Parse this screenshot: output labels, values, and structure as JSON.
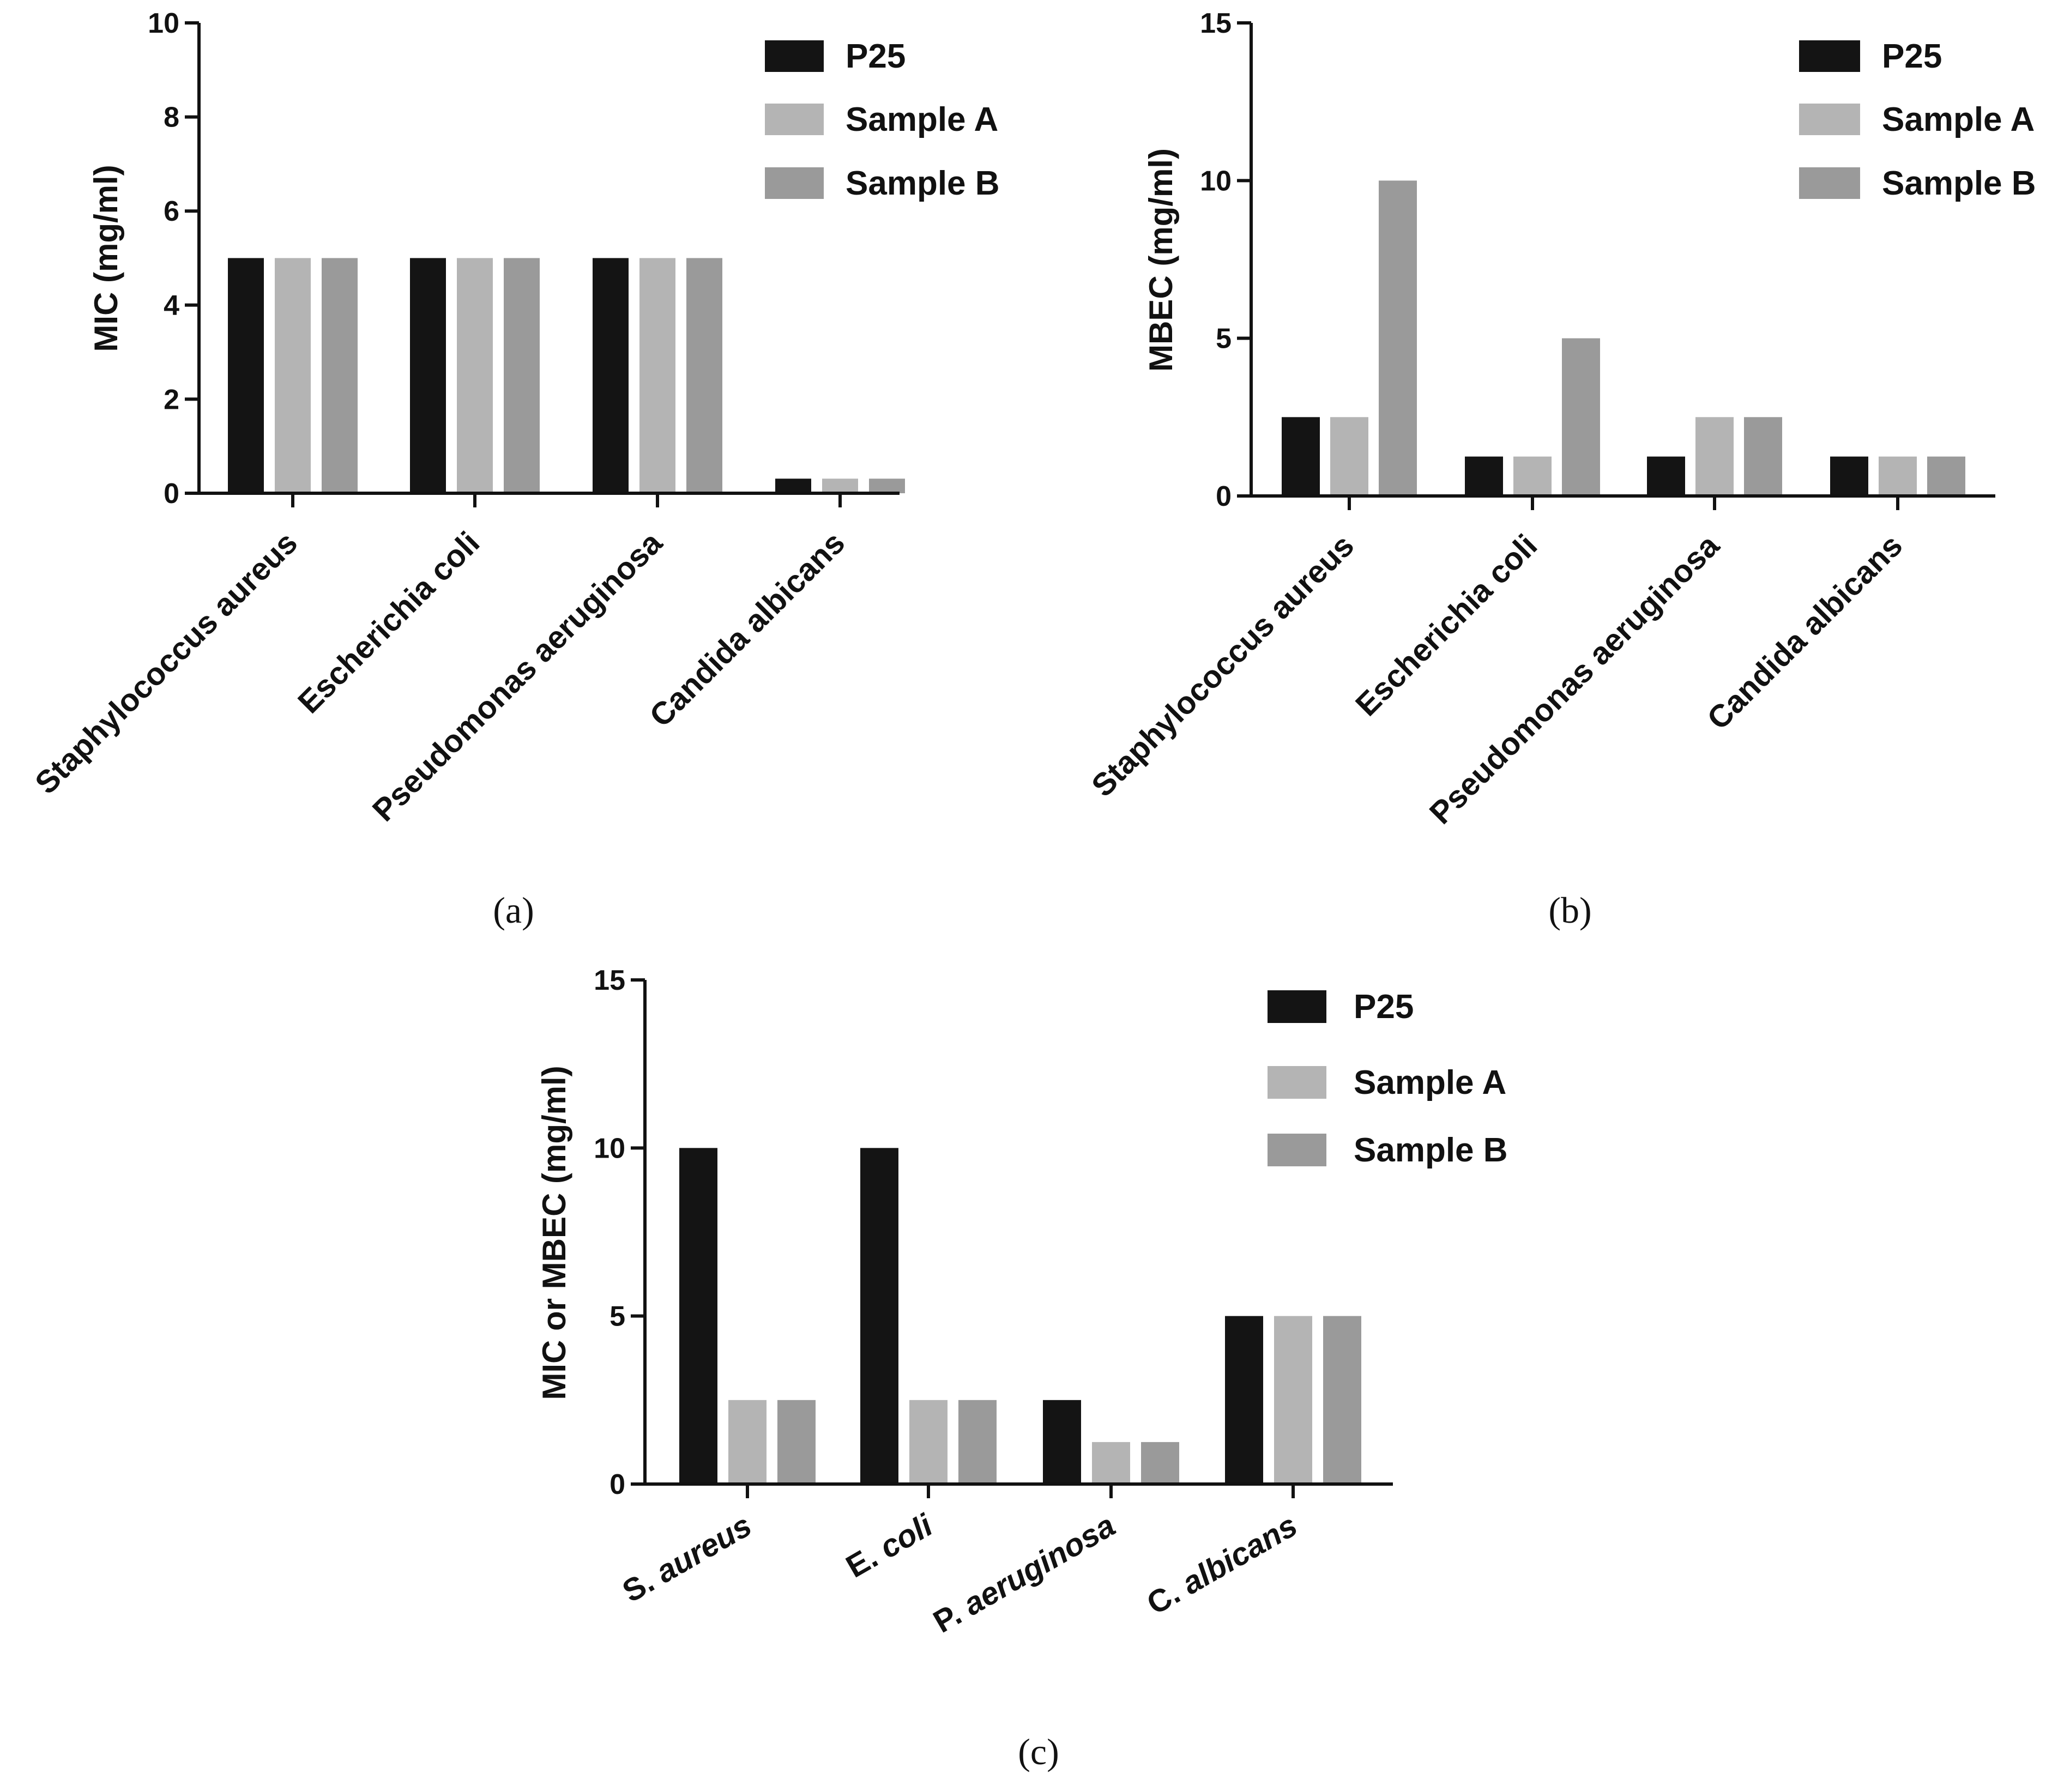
{
  "chart_data": [
    {
      "type": "bar",
      "caption": "(a)",
      "categories": [
        "Staphylococcus aureus",
        "Escherichia coli",
        "Pseudomonas aeruginosa",
        "Candida albicans"
      ],
      "category_style": "rotated",
      "series": [
        {
          "name": "P25",
          "values": [
            5.0,
            5.0,
            5.0,
            0.31
          ]
        },
        {
          "name": "Sample A",
          "values": [
            5.0,
            5.0,
            5.0,
            0.31
          ]
        },
        {
          "name": "Sample B",
          "values": [
            5.0,
            5.0,
            5.0,
            0.31
          ]
        }
      ],
      "ylabel": "MIC (mg/ml)",
      "xlabel": "",
      "ylim": [
        0,
        10
      ],
      "yticks": [
        0,
        2,
        4,
        6,
        8,
        10
      ],
      "grid": false,
      "legend": "top-right"
    },
    {
      "type": "bar",
      "caption": "(b)",
      "categories": [
        "Staphylococcus aureus",
        "Escherichia coli",
        "Pseudomonas aeruginosa",
        "Candida albicans"
      ],
      "category_style": "rotated",
      "series": [
        {
          "name": "P25",
          "values": [
            2.5,
            1.25,
            1.25,
            1.25
          ]
        },
        {
          "name": "Sample A",
          "values": [
            2.5,
            1.25,
            2.5,
            1.25
          ]
        },
        {
          "name": "Sample B",
          "values": [
            10.0,
            5.0,
            2.5,
            1.25
          ]
        }
      ],
      "ylabel": "MBEC (mg/ml)",
      "xlabel": "",
      "ylim": [
        0,
        15
      ],
      "yticks": [
        0,
        5,
        10,
        15
      ],
      "grid": false,
      "legend": "top-right"
    },
    {
      "type": "bar",
      "caption": "(c)",
      "categories": [
        "S. aureus",
        "E. coli",
        "P. aeruginosa",
        "C. albicans"
      ],
      "category_style": "italic-rotated",
      "series": [
        {
          "name": "P25",
          "values": [
            10.0,
            10.0,
            2.5,
            5.0
          ]
        },
        {
          "name": "Sample A",
          "values": [
            2.5,
            2.5,
            1.25,
            5.0
          ]
        },
        {
          "name": "Sample B",
          "values": [
            2.5,
            2.5,
            1.25,
            5.0
          ]
        }
      ],
      "ylabel": "MIC or MBEC (mg/ml)",
      "xlabel": "",
      "ylim": [
        0,
        15
      ],
      "yticks": [
        0,
        5,
        10,
        15
      ],
      "grid": false,
      "legend": "top-right"
    }
  ],
  "colors": {
    "P25": "#141414",
    "Sample A": "#b4b4b4",
    "Sample B": "#9a9a9a",
    "axis": "#111111"
  }
}
